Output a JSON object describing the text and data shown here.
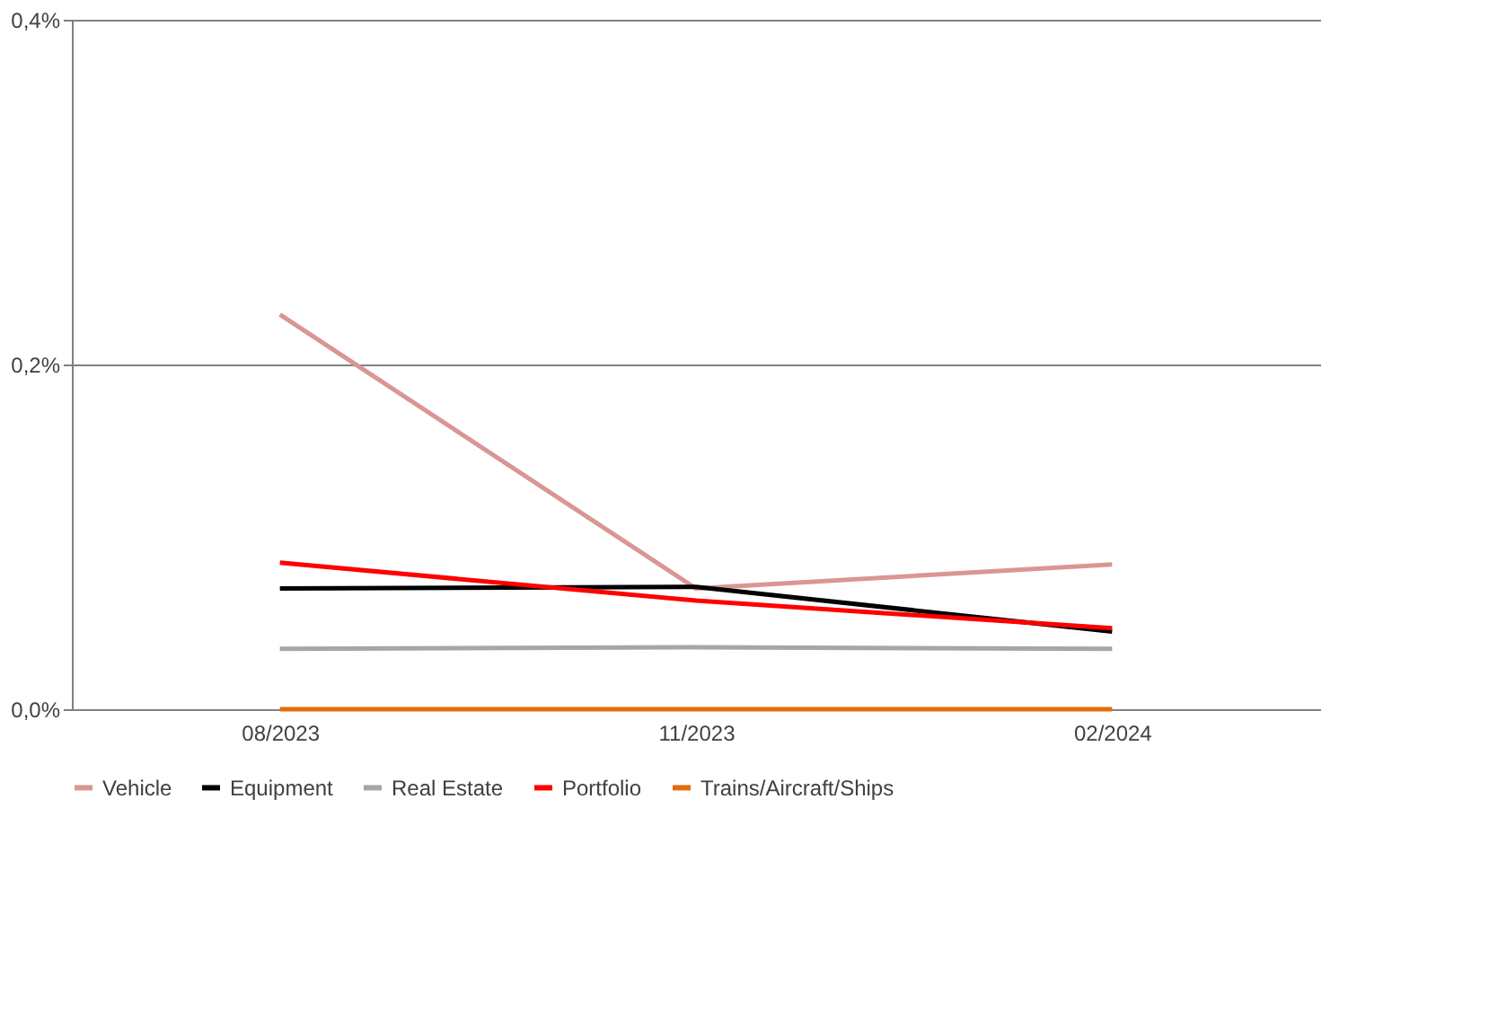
{
  "chart_data": {
    "type": "line",
    "categories": [
      "08/2023",
      "11/2023",
      "02/2024"
    ],
    "series": [
      {
        "name": "Vehicle",
        "color": "#d99694",
        "values": [
          0.229,
          0.07,
          0.084
        ]
      },
      {
        "name": "Equipment",
        "color": "#000000",
        "values": [
          0.07,
          0.071,
          0.045
        ]
      },
      {
        "name": "Real Estate",
        "color": "#a6a6a6",
        "values": [
          0.035,
          0.036,
          0.035
        ]
      },
      {
        "name": "Portfolio",
        "color": "#ff0000",
        "values": [
          0.085,
          0.063,
          0.047
        ]
      },
      {
        "name": "Trains/Aircraft/Ships",
        "color": "#e46c0a",
        "values": [
          0,
          0,
          0
        ]
      }
    ],
    "ylim": [
      0,
      0.4
    ],
    "yticks": [
      {
        "value": 0,
        "label": "0,0%"
      },
      {
        "value": 0.2,
        "label": "0,2%"
      },
      {
        "value": 0.4,
        "label": "0,4%"
      }
    ],
    "grid": "y",
    "legend": "bottom",
    "marker": "none",
    "line_style": "solid"
  }
}
